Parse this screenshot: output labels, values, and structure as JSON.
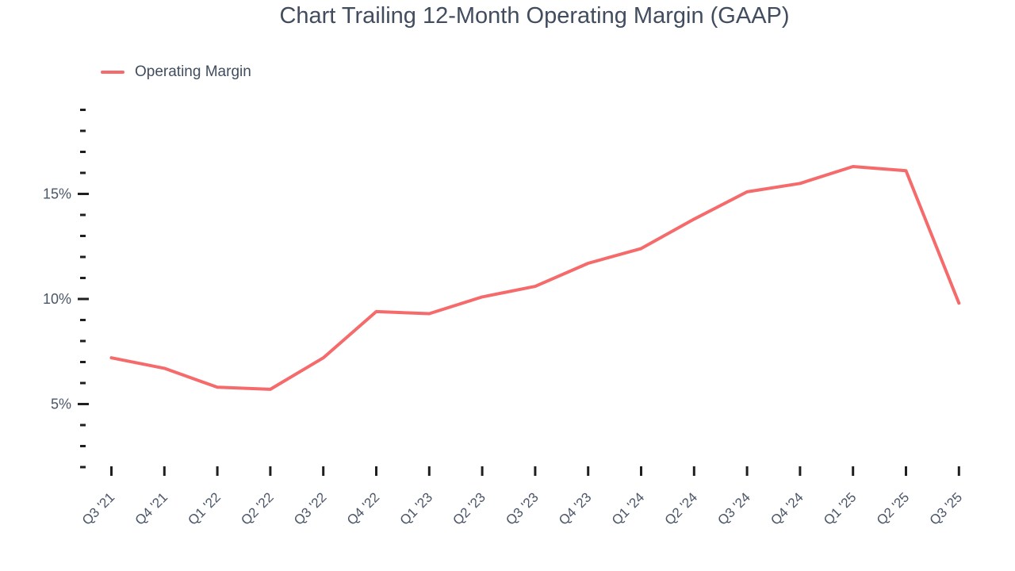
{
  "title": "Chart Trailing 12-Month Operating Margin (GAAP)",
  "legend": {
    "items": [
      {
        "label": "Operating Margin",
        "color": "#f56b6c"
      }
    ]
  },
  "chart_data": {
    "type": "line",
    "title": "Chart Trailing 12-Month Operating Margin (GAAP)",
    "categories": [
      "Q3 '21",
      "Q4 '21",
      "Q1 '22",
      "Q2 '22",
      "Q3 '22",
      "Q4 '22",
      "Q1 '23",
      "Q2 '23",
      "Q3 '23",
      "Q4 '23",
      "Q1 '24",
      "Q2 '24",
      "Q3 '24",
      "Q4 '24",
      "Q1 '25",
      "Q2 '25",
      "Q3 '25"
    ],
    "series": [
      {
        "name": "Operating Margin",
        "color": "#f56b6c",
        "values": [
          7.2,
          6.7,
          5.8,
          5.7,
          7.2,
          9.4,
          9.3,
          10.1,
          10.6,
          11.7,
          12.4,
          13.8,
          15.1,
          15.5,
          16.3,
          16.1,
          9.8
        ]
      }
    ],
    "xlabel": "",
    "ylabel": "",
    "ylim": [
      2,
      19
    ],
    "y_minor_step": 1,
    "y_major_ticks": [
      5,
      10,
      15
    ],
    "y_tick_format": "{v}%",
    "grid": false,
    "markers": false,
    "legend_position": "top-left"
  },
  "colors": {
    "line": "#f56b6c",
    "title_text": "#414d5f",
    "axis_text": "#4a5568",
    "tick": "#1f1f1f"
  }
}
